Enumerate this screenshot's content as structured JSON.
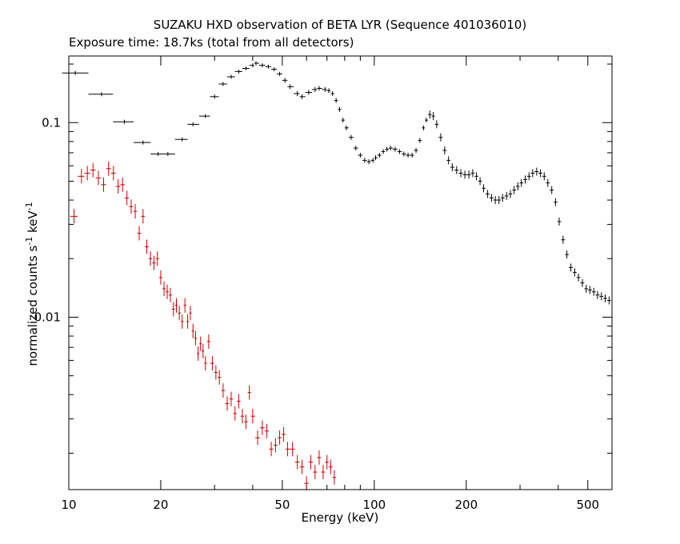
{
  "title": "SUZAKU HXD observation of BETA LYR (Sequence 401036010)",
  "subtitle": "Exposure time: 18.7ks (total from all detectors)",
  "xlabel": "Energy (keV)",
  "ylabel_parts": {
    "a": "normalized counts s",
    "b": "-1",
    "c": " keV",
    "d": "-1"
  },
  "chart_data": {
    "type": "scatter",
    "title": "SUZAKU HXD observation of BETA LYR (Sequence 401036010)",
    "subtitle": "Exposure time: 18.7ks (total from all detectors)",
    "xlabel": "Energy (keV)",
    "ylabel": "normalized counts s^-1 keV^-1",
    "x_scale": "log",
    "y_scale": "log",
    "xlim": [
      10,
      600
    ],
    "ylim": [
      0.0013,
      0.22
    ],
    "grid": false,
    "x_ticks": [
      10,
      20,
      50,
      100,
      200,
      500
    ],
    "x_tick_labels": [
      "10",
      "20",
      "50",
      "100",
      "200",
      "500"
    ],
    "y_ticks": [
      0.1,
      0.01
    ],
    "y_tick_labels": [
      "0.1",
      "0.01"
    ],
    "series": [
      {
        "color": "#000000",
        "x": [
          10.5,
          12.8,
          15.2,
          17.5,
          19.6,
          21.1,
          23.5,
          25.5,
          28,
          30,
          32,
          34,
          36,
          38,
          40,
          41,
          43,
          45,
          47,
          49,
          51,
          53,
          56,
          58,
          61,
          64,
          66,
          69,
          71,
          73,
          75,
          77,
          79,
          81,
          84,
          87,
          90,
          93,
          96,
          99,
          101,
          104,
          107,
          110,
          113,
          117,
          121,
          125,
          129,
          133,
          137,
          141,
          145,
          148,
          152,
          156,
          160,
          165,
          170,
          175,
          180,
          186,
          192,
          198,
          204,
          210,
          216,
          222,
          228,
          235,
          242,
          249,
          256,
          263,
          271,
          279,
          287,
          295,
          303,
          312,
          321,
          330,
          340,
          350,
          360,
          370,
          381,
          392,
          403,
          415,
          427,
          440,
          453,
          466,
          480,
          494,
          508,
          523,
          538,
          554,
          570,
          587
        ],
        "y": [
          0.18,
          0.14,
          0.101,
          0.079,
          0.069,
          0.069,
          0.082,
          0.098,
          0.108,
          0.136,
          0.158,
          0.172,
          0.183,
          0.19,
          0.197,
          0.202,
          0.197,
          0.194,
          0.188,
          0.178,
          0.165,
          0.153,
          0.141,
          0.136,
          0.143,
          0.148,
          0.15,
          0.148,
          0.146,
          0.141,
          0.13,
          0.117,
          0.103,
          0.094,
          0.084,
          0.074,
          0.068,
          0.064,
          0.063,
          0.064,
          0.066,
          0.068,
          0.071,
          0.073,
          0.074,
          0.073,
          0.071,
          0.069,
          0.068,
          0.068,
          0.072,
          0.081,
          0.094,
          0.103,
          0.11,
          0.108,
          0.098,
          0.084,
          0.072,
          0.064,
          0.059,
          0.057,
          0.055,
          0.054,
          0.054,
          0.055,
          0.053,
          0.05,
          0.046,
          0.043,
          0.041,
          0.04,
          0.04,
          0.041,
          0.042,
          0.043,
          0.045,
          0.047,
          0.049,
          0.051,
          0.053,
          0.055,
          0.056,
          0.055,
          0.053,
          0.049,
          0.045,
          0.039,
          0.031,
          0.025,
          0.021,
          0.018,
          0.017,
          0.016,
          0.015,
          0.014,
          0.0138,
          0.0135,
          0.013,
          0.0128,
          0.0125,
          0.0122
        ]
      },
      {
        "color": "#cc0000",
        "x": [
          10.4,
          11,
          11.5,
          12,
          12.5,
          13,
          13.5,
          14,
          14.5,
          15,
          15.5,
          16,
          16.5,
          17,
          17.5,
          18,
          18.5,
          19,
          19.5,
          20,
          20.5,
          21,
          21.5,
          22,
          22.5,
          23,
          23.5,
          24,
          24.5,
          25,
          25.5,
          26,
          26.5,
          27,
          27.5,
          28,
          28.7,
          29.5,
          30.3,
          31.1,
          32,
          33,
          34,
          35,
          36,
          37,
          38,
          39,
          40,
          41.5,
          43,
          44.5,
          46,
          47.5,
          49,
          50.5,
          52,
          54,
          56,
          58,
          60,
          62,
          64,
          66,
          68,
          70,
          72,
          74
        ],
        "y": [
          0.033,
          0.053,
          0.055,
          0.057,
          0.052,
          0.048,
          0.058,
          0.055,
          0.047,
          0.048,
          0.041,
          0.037,
          0.035,
          0.027,
          0.033,
          0.023,
          0.02,
          0.019,
          0.02,
          0.016,
          0.014,
          0.0135,
          0.013,
          0.011,
          0.0115,
          0.0105,
          0.0095,
          0.0115,
          0.0095,
          0.0105,
          0.0085,
          0.0078,
          0.0065,
          0.0073,
          0.0067,
          0.0058,
          0.0075,
          0.0058,
          0.0052,
          0.0049,
          0.0042,
          0.0036,
          0.0038,
          0.0032,
          0.0037,
          0.0031,
          0.0029,
          0.0041,
          0.0031,
          0.0024,
          0.0027,
          0.0026,
          0.0021,
          0.0022,
          0.0024,
          0.0025,
          0.0021,
          0.0021,
          0.0018,
          0.0017,
          0.0014,
          0.0018,
          0.0016,
          0.0019,
          0.0016,
          0.0018,
          0.0017,
          0.0015
        ]
      }
    ]
  }
}
